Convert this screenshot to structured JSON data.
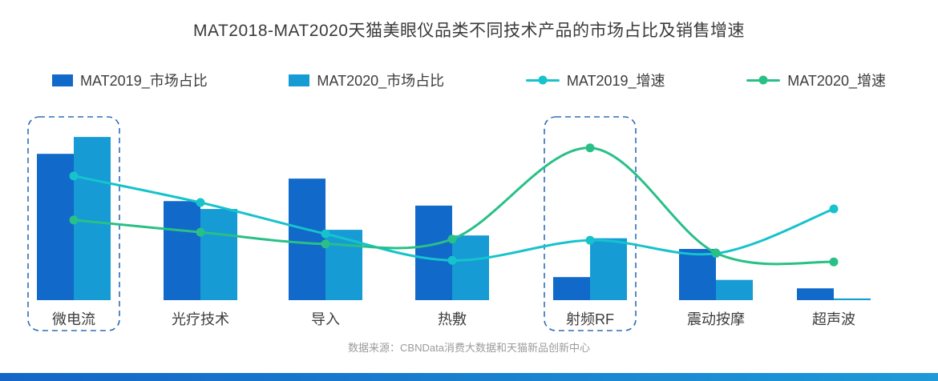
{
  "page": {
    "title": "MAT2018-MAT2020天猫美眼仪品类不同技术产品的市场占比及销售增速",
    "source": "数据来源：CBNData消费大数据和天猫新品创新中心"
  },
  "legend": [
    {
      "label": "MAT2019_市场占比",
      "type": "bar",
      "color": "#1169c9"
    },
    {
      "label": "MAT2020_市场占比",
      "type": "bar",
      "color": "#169bd5"
    },
    {
      "label": "MAT2019_增速",
      "type": "line",
      "color": "#16c3cc"
    },
    {
      "label": "MAT2020_增速",
      "type": "line",
      "color": "#29c087"
    }
  ],
  "chart_data": {
    "type": "bar+line",
    "title": "MAT2018-MAT2020天猫美眼仪品类不同技术产品的市场占比及销售增速",
    "categories": [
      "微电流",
      "光疗技术",
      "导入",
      "热敷",
      "射频RF",
      "震动按摩",
      "超声波"
    ],
    "bar_series": [
      {
        "name": "MAT2019_市场占比",
        "color": "#1169c9",
        "values": [
          26,
          17.6,
          21.6,
          16.8,
          4.1,
          9.1,
          2.1
        ]
      },
      {
        "name": "MAT2020_市场占比",
        "color": "#169bd5",
        "values": [
          29,
          16.2,
          12.5,
          11.5,
          11,
          3.6,
          0.3
        ]
      }
    ],
    "line_series": [
      {
        "name": "MAT2019_增速",
        "color": "#16c3cc",
        "values": [
          234,
          184,
          125,
          75,
          113,
          88,
          172
        ]
      },
      {
        "name": "MAT2020_增速",
        "color": "#29c087",
        "values": [
          151,
          128,
          106,
          115,
          287,
          89,
          72
        ]
      }
    ],
    "bar_axis_max": 33,
    "line_axis_max": 350,
    "bar_unit": "%",
    "line_unit": "%",
    "grid": false,
    "legend_position": "top",
    "highlighted_categories": [
      0,
      4
    ],
    "highlight_color": "#2f6eb5"
  }
}
